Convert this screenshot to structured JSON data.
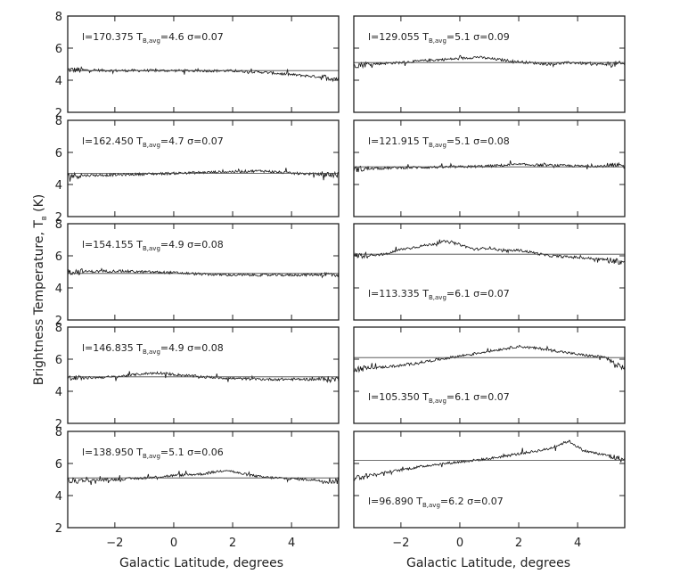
{
  "chart_data": {
    "type": "line",
    "ylabel": "Brightness Temperature, T",
    "ylabel_sub": "B",
    "ylabel_unit": " (K)",
    "xlabel_left": "Galactic Latitude, degrees",
    "xlabel_right": "Galactic Latitude, degrees",
    "xlim": [
      -3.6,
      5.6
    ],
    "ylim": [
      2,
      8
    ],
    "xticks": [
      -2,
      0,
      2,
      4
    ],
    "yticks": [
      2,
      4,
      6,
      8
    ],
    "grid": false,
    "panels": [
      {
        "l": "170.375",
        "tavg": 4.6,
        "sigma": "0.07",
        "label_pos": "top",
        "trend": [
          [
            -3.6,
            4.65
          ],
          [
            -2,
            4.6
          ],
          [
            0,
            4.6
          ],
          [
            2,
            4.58
          ],
          [
            3,
            4.5
          ],
          [
            4,
            4.35
          ],
          [
            5,
            4.2
          ],
          [
            5.6,
            4.1
          ]
        ]
      },
      {
        "l": "129.055",
        "tavg": 5.1,
        "sigma": "0.09",
        "label_pos": "top",
        "trend": [
          [
            -3.6,
            4.95
          ],
          [
            -2,
            5.1
          ],
          [
            -1,
            5.25
          ],
          [
            0,
            5.35
          ],
          [
            0.6,
            5.45
          ],
          [
            1,
            5.35
          ],
          [
            2,
            5.15
          ],
          [
            3,
            5.0
          ],
          [
            3.8,
            5.1
          ],
          [
            4.5,
            5.0
          ],
          [
            5.6,
            5.0
          ]
        ]
      },
      {
        "l": "162.450",
        "tavg": 4.7,
        "sigma": "0.07",
        "label_pos": "top",
        "trend": [
          [
            -3.6,
            4.55
          ],
          [
            -2,
            4.6
          ],
          [
            0,
            4.7
          ],
          [
            2,
            4.8
          ],
          [
            3,
            4.85
          ],
          [
            4,
            4.7
          ],
          [
            5.6,
            4.6
          ]
        ]
      },
      {
        "l": "121.915",
        "tavg": 5.1,
        "sigma": "0.08",
        "label_pos": "top",
        "trend": [
          [
            -3.6,
            4.95
          ],
          [
            -2,
            5.05
          ],
          [
            0,
            5.1
          ],
          [
            1,
            5.15
          ],
          [
            2,
            5.25
          ],
          [
            3,
            5.2
          ],
          [
            4,
            5.15
          ],
          [
            5.6,
            5.15
          ]
        ]
      },
      {
        "l": "154.155",
        "tavg": 4.9,
        "sigma": "0.08",
        "label_pos": "top",
        "trend": [
          [
            -3.6,
            5.0
          ],
          [
            -2,
            5.05
          ],
          [
            -1,
            5.0
          ],
          [
            0,
            4.95
          ],
          [
            1,
            4.85
          ],
          [
            2,
            4.8
          ],
          [
            3,
            4.8
          ],
          [
            4,
            4.8
          ],
          [
            5.6,
            4.85
          ]
        ]
      },
      {
        "l": "113.335",
        "tavg": 6.1,
        "sigma": "0.07",
        "label_pos": "bottom",
        "trend": [
          [
            -3.6,
            6.0
          ],
          [
            -2.5,
            6.1
          ],
          [
            -2,
            6.4
          ],
          [
            -1,
            6.7
          ],
          [
            -0.5,
            6.9
          ],
          [
            0,
            6.7
          ],
          [
            0.5,
            6.4
          ],
          [
            1,
            6.5
          ],
          [
            1.5,
            6.3
          ],
          [
            2,
            6.35
          ],
          [
            2.5,
            6.2
          ],
          [
            3,
            6.0
          ],
          [
            4,
            5.9
          ],
          [
            5,
            5.75
          ],
          [
            5.6,
            5.6
          ]
        ]
      },
      {
        "l": "146.835",
        "tavg": 4.9,
        "sigma": "0.08",
        "label_pos": "top",
        "trend": [
          [
            -3.6,
            4.8
          ],
          [
            -2,
            4.9
          ],
          [
            -1,
            5.1
          ],
          [
            -0.5,
            5.15
          ],
          [
            0,
            5.05
          ],
          [
            1,
            4.9
          ],
          [
            2,
            4.8
          ],
          [
            3,
            4.75
          ],
          [
            4,
            4.75
          ],
          [
            5.6,
            4.75
          ]
        ]
      },
      {
        "l": "105.350",
        "tavg": 6.1,
        "sigma": "0.07",
        "label_pos": "bottom",
        "trend": [
          [
            -3.6,
            5.4
          ],
          [
            -3,
            5.45
          ],
          [
            -2,
            5.6
          ],
          [
            -1,
            5.9
          ],
          [
            0,
            6.2
          ],
          [
            1,
            6.5
          ],
          [
            2,
            6.8
          ],
          [
            3,
            6.6
          ],
          [
            4,
            6.3
          ],
          [
            5,
            6.1
          ],
          [
            5.3,
            5.6
          ],
          [
            5.6,
            5.5
          ]
        ]
      },
      {
        "l": "138.950",
        "tavg": 5.1,
        "sigma": "0.06",
        "label_pos": "top",
        "trend": [
          [
            -3.6,
            4.9
          ],
          [
            -2,
            5.0
          ],
          [
            -1,
            5.1
          ],
          [
            0,
            5.25
          ],
          [
            1,
            5.35
          ],
          [
            1.8,
            5.6
          ],
          [
            2.2,
            5.4
          ],
          [
            3,
            5.15
          ],
          [
            4,
            5.05
          ],
          [
            5,
            4.95
          ],
          [
            5.6,
            4.9
          ]
        ]
      },
      {
        "l": "96.890",
        "tavg": 6.2,
        "sigma": "0.07",
        "label_pos": "bottom",
        "trend": [
          [
            -3.6,
            5.1
          ],
          [
            -2,
            5.6
          ],
          [
            -1,
            5.9
          ],
          [
            0,
            6.1
          ],
          [
            1,
            6.3
          ],
          [
            2,
            6.6
          ],
          [
            3,
            6.9
          ],
          [
            3.7,
            7.4
          ],
          [
            4.2,
            6.8
          ],
          [
            5,
            6.5
          ],
          [
            5.6,
            6.2
          ]
        ]
      }
    ]
  }
}
